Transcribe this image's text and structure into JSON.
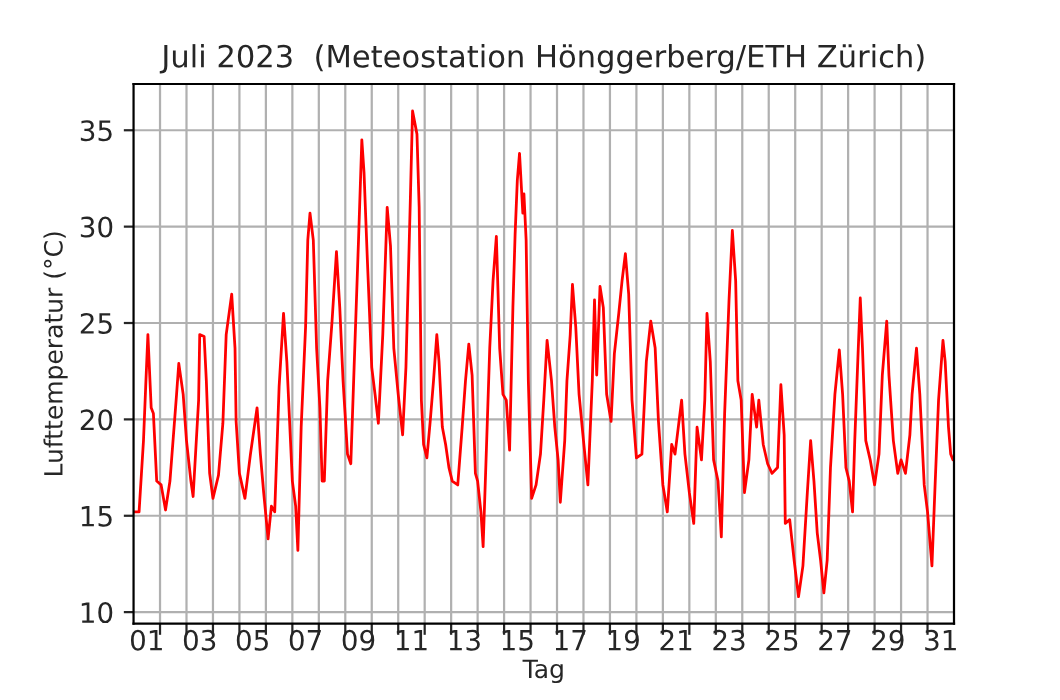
{
  "chart_data": {
    "type": "line",
    "title": "Juli 2023  (Meteostation Hönggerberg/ETH Zürich)",
    "xlabel": "Tag",
    "ylabel": "Lufttemperatur (°C)",
    "x": [
      "2023-07-01T00:00",
      "2023-07-01T05:00",
      "2023-07-01T09:00",
      "2023-07-01T11:00",
      "2023-07-01T13:00",
      "2023-07-01T16:00",
      "2023-07-01T18:00",
      "2023-07-01T21:00",
      "2023-07-02T01:00",
      "2023-07-02T05:00",
      "2023-07-02T09:00",
      "2023-07-02T15:00",
      "2023-07-02T17:00",
      "2023-07-02T21:00",
      "2023-07-03T00:00",
      "2023-07-03T04:00",
      "2023-07-03T06:00",
      "2023-07-03T11:00",
      "2023-07-03T12:00",
      "2023-07-03T16:00",
      "2023-07-03T18:00",
      "2023-07-03T21:00",
      "2023-07-04T00:00",
      "2023-07-04T05:00",
      "2023-07-04T09:00",
      "2023-07-04T12:00",
      "2023-07-04T17:00",
      "2023-07-04T20:00",
      "2023-07-04T21:00",
      "2023-07-05T00:00",
      "2023-07-05T05:00",
      "2023-07-05T10:00",
      "2023-07-05T16:00",
      "2023-07-05T19:00",
      "2023-07-05T22:00",
      "2023-07-06T02:00",
      "2023-07-06T05:00",
      "2023-07-06T08:00",
      "2023-07-06T12:00",
      "2023-07-06T16:00",
      "2023-07-06T19:00",
      "2023-07-07T00:00",
      "2023-07-07T03:00",
      "2023-07-07T05:00",
      "2023-07-07T08:00",
      "2023-07-07T12:00",
      "2023-07-07T14:00",
      "2023-07-07T16:00",
      "2023-07-07T19:00",
      "2023-07-07T22:00",
      "2023-07-08T01:00",
      "2023-07-08T03:00",
      "2023-07-08T05:00",
      "2023-07-08T08:00",
      "2023-07-08T12:00",
      "2023-07-08T16:00",
      "2023-07-08T19:00",
      "2023-07-08T22:00",
      "2023-07-09T02:00",
      "2023-07-09T05:00",
      "2023-07-09T08:00",
      "2023-07-09T12:00",
      "2023-07-09T15:00",
      "2023-07-09T17:00",
      "2023-07-09T20:00",
      "2023-07-10T00:00",
      "2023-07-10T03:00",
      "2023-07-10T06:00",
      "2023-07-10T10:00",
      "2023-07-10T14:00",
      "2023-07-10T17:00",
      "2023-07-10T20:00",
      "2023-07-11T00:00",
      "2023-07-11T04:00",
      "2023-07-11T07:00",
      "2023-07-11T11:00",
      "2023-07-11T13:00",
      "2023-07-11T17:00",
      "2023-07-11T19:00",
      "2023-07-11T21:00",
      "2023-07-11T23:00",
      "2023-07-12T02:00",
      "2023-07-12T05:00",
      "2023-07-12T08:00",
      "2023-07-12T11:00",
      "2023-07-12T13:00",
      "2023-07-12T16:00",
      "2023-07-12T19:00",
      "2023-07-12T22:00",
      "2023-07-13T01:00",
      "2023-07-13T06:00",
      "2023-07-13T10:00",
      "2023-07-13T13:00",
      "2023-07-13T16:00",
      "2023-07-13T19:00",
      "2023-07-13T22:00",
      "2023-07-14T00:00",
      "2023-07-14T03:00",
      "2023-07-14T05:00",
      "2023-07-14T08:00",
      "2023-07-14T11:00",
      "2023-07-14T14:00",
      "2023-07-14T17:00",
      "2023-07-14T20:00",
      "2023-07-14T23:00",
      "2023-07-15T02:00",
      "2023-07-15T05:00",
      "2023-07-15T08:00",
      "2023-07-15T10:00",
      "2023-07-15T12:00",
      "2023-07-15T14:00",
      "2023-07-15T17:00",
      "2023-07-15T18:00",
      "2023-07-15T20:00",
      "2023-07-15T22:00",
      "2023-07-16T01:00",
      "2023-07-16T05:00",
      "2023-07-16T09:00",
      "2023-07-16T12:00",
      "2023-07-16T15:00",
      "2023-07-16T19:00",
      "2023-07-16T22:00",
      "2023-07-17T01:00",
      "2023-07-17T03:00",
      "2023-07-17T07:00",
      "2023-07-17T09:00",
      "2023-07-17T12:00",
      "2023-07-17T14:00",
      "2023-07-17T17:00",
      "2023-07-17T20:00",
      "2023-07-18T00:00",
      "2023-07-18T04:00",
      "2023-07-18T08:00",
      "2023-07-18T10:00",
      "2023-07-18T12:00",
      "2023-07-18T15:00",
      "2023-07-18T18:00",
      "2023-07-18T21:00",
      "2023-07-19T01:00",
      "2023-07-19T04:00",
      "2023-07-19T08:00",
      "2023-07-19T11:00",
      "2023-07-19T14:00",
      "2023-07-19T17:00",
      "2023-07-19T20:00",
      "2023-07-20T00:00",
      "2023-07-20T05:00",
      "2023-07-20T09:00",
      "2023-07-20T13:00",
      "2023-07-20T17:00",
      "2023-07-20T20:00",
      "2023-07-21T00:00",
      "2023-07-21T04:00",
      "2023-07-21T08:00",
      "2023-07-21T11:00",
      "2023-07-21T14:00",
      "2023-07-21T17:00",
      "2023-07-21T20:00",
      "2023-07-22T00:00",
      "2023-07-22T04:00",
      "2023-07-22T07:00",
      "2023-07-22T11:00",
      "2023-07-22T14:00",
      "2023-07-22T16:00",
      "2023-07-22T19:00",
      "2023-07-22T22:00",
      "2023-07-23T02:00",
      "2023-07-23T05:00",
      "2023-07-23T08:00",
      "2023-07-23T12:00",
      "2023-07-23T15:00",
      "2023-07-23T18:00",
      "2023-07-23T20:00",
      "2023-07-23T23:00",
      "2023-07-24T02:00",
      "2023-07-24T06:00",
      "2023-07-24T09:00",
      "2023-07-24T13:00",
      "2023-07-24T15:00",
      "2023-07-24T19:00",
      "2023-07-24T23:00",
      "2023-07-25T03:00",
      "2023-07-25T08:00",
      "2023-07-25T11:00",
      "2023-07-25T14:00",
      "2023-07-25T15:00",
      "2023-07-25T19:00",
      "2023-07-25T23:00",
      "2023-07-26T03:00",
      "2023-07-26T07:00",
      "2023-07-26T11:00",
      "2023-07-26T14:00",
      "2023-07-26T17:00",
      "2023-07-26T20:00",
      "2023-07-26T23:00",
      "2023-07-27T02:00",
      "2023-07-27T05:00",
      "2023-07-27T08:00",
      "2023-07-27T12:00",
      "2023-07-27T16:00",
      "2023-07-27T19:00",
      "2023-07-27T22:00",
      "2023-07-28T01:00",
      "2023-07-28T04:00",
      "2023-07-28T06:00",
      "2023-07-28T09:00",
      "2023-07-28T11:00",
      "2023-07-28T13:00",
      "2023-07-28T16:00",
      "2023-07-28T20:00",
      "2023-07-29T00:00",
      "2023-07-29T04:00",
      "2023-07-29T07:00",
      "2023-07-29T11:00",
      "2023-07-29T13:00",
      "2023-07-29T17:00",
      "2023-07-29T21:00",
      "2023-07-30T00:00",
      "2023-07-30T04:00",
      "2023-07-30T08:00",
      "2023-07-30T10:00",
      "2023-07-30T14:00",
      "2023-07-30T17:00",
      "2023-07-30T21:00",
      "2023-07-31T00:00",
      "2023-07-31T04:00",
      "2023-07-31T07:00",
      "2023-07-31T10:00",
      "2023-07-31T14:00",
      "2023-07-31T16:00",
      "2023-07-31T19:00",
      "2023-07-31T21:00",
      "2023-07-31T23:00"
    ],
    "series": [
      {
        "color": "#ff0000",
        "values": [
          15.2,
          15.2,
          18.9,
          21.7,
          24.4,
          20.6,
          20.3,
          16.8,
          16.6,
          15.3,
          16.8,
          21.3,
          22.9,
          21.3,
          18.9,
          16.8,
          16.0,
          21.0,
          24.4,
          24.3,
          22.0,
          17.2,
          15.9,
          17.1,
          19.8,
          24.4,
          26.5,
          23.7,
          19.9,
          17.2,
          15.9,
          18.2,
          20.6,
          18.2,
          16.2,
          13.8,
          15.5,
          15.2,
          21.7,
          25.5,
          23.0,
          16.8,
          15.5,
          13.2,
          19.6,
          24.8,
          29.3,
          30.7,
          29.3,
          23.7,
          20.6,
          16.8,
          16.8,
          22.0,
          25.1,
          28.7,
          25.8,
          22.0,
          18.2,
          17.7,
          22.7,
          29.3,
          34.5,
          32.8,
          28.3,
          22.7,
          21.3,
          19.8,
          24.4,
          31.0,
          29.0,
          23.7,
          21.3,
          19.2,
          22.7,
          31.4,
          36.0,
          34.8,
          31.0,
          21.0,
          18.7,
          18.0,
          19.9,
          22.0,
          24.4,
          23.0,
          19.6,
          18.7,
          17.5,
          16.8,
          16.6,
          19.6,
          22.0,
          23.9,
          22.3,
          17.2,
          16.8,
          15.2,
          13.4,
          18.5,
          23.7,
          27.2,
          29.5,
          23.7,
          21.3,
          21.0,
          18.4,
          25.8,
          29.6,
          32.4,
          33.8,
          30.7,
          31.7,
          29.3,
          22.0,
          15.9,
          16.6,
          18.2,
          21.0,
          24.1,
          22.0,
          19.6,
          17.9,
          15.7,
          18.9,
          22.0,
          24.4,
          27.0,
          24.8,
          21.3,
          18.9,
          16.6,
          22.0,
          26.2,
          22.3,
          26.9,
          25.8,
          21.3,
          19.9,
          23.4,
          25.5,
          27.2,
          28.6,
          26.5,
          21.0,
          18.0,
          18.2,
          23.0,
          25.1,
          23.7,
          19.9,
          16.6,
          15.2,
          18.7,
          18.2,
          19.6,
          21.0,
          18.2,
          16.2,
          14.6,
          19.6,
          17.9,
          21.0,
          25.5,
          23.0,
          17.9,
          16.8,
          13.9,
          20.3,
          26.2,
          29.8,
          27.2,
          22.0,
          21.0,
          16.2,
          17.9,
          21.3,
          19.6,
          21.0,
          18.7,
          17.7,
          17.2,
          17.5,
          21.8,
          19.2,
          14.6,
          14.8,
          12.7,
          10.8,
          12.4,
          16.2,
          18.9,
          16.8,
          14.1,
          12.7,
          11.0,
          12.7,
          17.5,
          21.3,
          23.6,
          21.3,
          17.5,
          16.8,
          15.2,
          18.9,
          23.4,
          26.3,
          23.7,
          18.9,
          17.9,
          16.6,
          18.2,
          22.3,
          25.1,
          22.3,
          18.9,
          17.2,
          17.9,
          17.2,
          19.2,
          21.3,
          23.7,
          21.3,
          16.6,
          15.2,
          12.4,
          16.8,
          21.0,
          24.1,
          23.0,
          19.6,
          18.2,
          17.9
        ]
      }
    ],
    "xlim": [
      "2023-07-01T00:00",
      "2023-08-01T00:00"
    ],
    "ylim": [
      9.4,
      37.4
    ],
    "yticks": [
      10,
      15,
      20,
      25,
      30,
      35
    ],
    "xticks": [
      {
        "value": "2023-07-01T12:00",
        "label": "01"
      },
      {
        "value": "2023-07-03T12:00",
        "label": "03"
      },
      {
        "value": "2023-07-05T12:00",
        "label": "05"
      },
      {
        "value": "2023-07-07T12:00",
        "label": "07"
      },
      {
        "value": "2023-07-09T12:00",
        "label": "09"
      },
      {
        "value": "2023-07-11T12:00",
        "label": "11"
      },
      {
        "value": "2023-07-13T12:00",
        "label": "13"
      },
      {
        "value": "2023-07-15T12:00",
        "label": "15"
      },
      {
        "value": "2023-07-17T12:00",
        "label": "17"
      },
      {
        "value": "2023-07-19T12:00",
        "label": "19"
      },
      {
        "value": "2023-07-21T12:00",
        "label": "21"
      },
      {
        "value": "2023-07-23T12:00",
        "label": "23"
      },
      {
        "value": "2023-07-25T12:00",
        "label": "25"
      },
      {
        "value": "2023-07-27T12:00",
        "label": "27"
      },
      {
        "value": "2023-07-29T12:00",
        "label": "29"
      },
      {
        "value": "2023-07-31T12:00",
        "label": "31"
      },
      {
        "value": "2023-07-02",
        "label": null
      },
      {
        "value": "2023-07-03",
        "label": null
      },
      {
        "value": "2023-07-04",
        "label": null
      },
      {
        "value": "2023-07-05",
        "label": null
      },
      {
        "value": "2023-07-06",
        "label": null
      },
      {
        "value": "2023-07-07",
        "label": null
      },
      {
        "value": "2023-07-08",
        "label": null
      },
      {
        "value": "2023-07-09",
        "label": null
      },
      {
        "value": "2023-07-10",
        "label": null
      },
      {
        "value": "2023-07-11",
        "label": null
      },
      {
        "value": "2023-07-12",
        "label": null
      },
      {
        "value": "2023-07-13",
        "label": null
      },
      {
        "value": "2023-07-14",
        "label": null
      },
      {
        "value": "2023-07-15",
        "label": null
      },
      {
        "value": "2023-07-16",
        "label": null
      },
      {
        "value": "2023-07-17",
        "label": null
      },
      {
        "value": "2023-07-18",
        "label": null
      },
      {
        "value": "2023-07-19",
        "label": null
      },
      {
        "value": "2023-07-20",
        "label": null
      },
      {
        "value": "2023-07-21",
        "label": null
      },
      {
        "value": "2023-07-22",
        "label": null
      },
      {
        "value": "2023-07-23",
        "label": null
      },
      {
        "value": "2023-07-24",
        "label": null
      },
      {
        "value": "2023-07-25",
        "label": null
      },
      {
        "value": "2023-07-26",
        "label": null
      },
      {
        "value": "2023-07-27",
        "label": null
      },
      {
        "value": "2023-07-28",
        "label": null
      },
      {
        "value": "2023-07-29",
        "label": null
      },
      {
        "value": "2023-07-30",
        "label": null
      },
      {
        "value": "2023-07-31",
        "label": null
      }
    ],
    "grid": true,
    "line_style": "solid"
  }
}
